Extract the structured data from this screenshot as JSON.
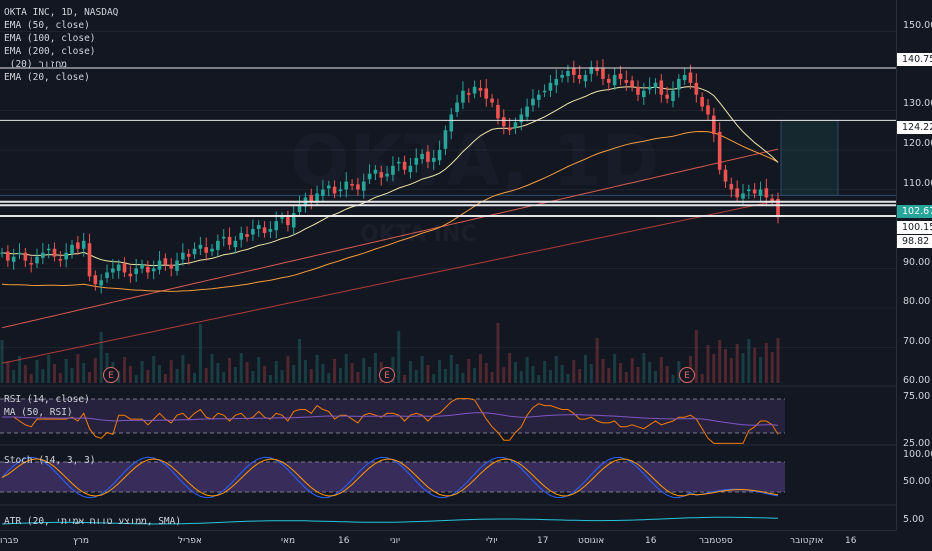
{
  "legend": {
    "symbol": "OKTA INC, 1D, NASDAQ",
    "ema50": "EMA (50, close)",
    "ema100": "EMA (100, close)",
    "ema200": "EMA (200, close)",
    "volume": " (20) מחזור",
    "ema20": "EMA (20, close)"
  },
  "rsi_legend": "RSI (14, close)",
  "rsi_ma_legend": "MA (50, RSI)",
  "stoch_legend": "Stoch (14, 3, 3)",
  "atr_legend": "ATR (20, ממוצע טווח אמיתי, SMA)",
  "watermark": {
    "line1": "OKTA, 1D",
    "line2": "OKTA INC"
  },
  "price_scale": {
    "ticks": [
      "150.00",
      "130.00",
      "120.00",
      "110.00",
      "90.00",
      "80.00",
      "70.00",
      "60.00"
    ],
    "level_badges": [
      "140.75",
      "124.22",
      "100.15",
      "98.82"
    ],
    "current_price": "102.67"
  },
  "rsi_scale": [
    "75.00",
    "25.00"
  ],
  "stoch_scale": [
    "100.00",
    "50.00"
  ],
  "atr_scale": [
    "5.00"
  ],
  "time_axis": [
    "פברו",
    "מרץ",
    "אפריל",
    "מאי",
    "16",
    "יוני",
    "יולי",
    "17",
    "אוגוסט",
    "16",
    "ספטמבר",
    "אוקטובר",
    "16"
  ],
  "earnings_marker": "E",
  "colors": {
    "up": "#26a69a",
    "down": "#ef5350",
    "ema20": "#f0e6a8",
    "ema50": "#f59b3b",
    "ema100": "#d9584f",
    "ema200": "#b23a36",
    "rsi": "#f57c00",
    "stoch_k": "#2962ff",
    "stoch_d": "#ff9800",
    "atr": "#26c6da"
  },
  "chart_data": {
    "type": "candlestick",
    "title": "OKTA INC, 1D, NASDAQ",
    "ylim": [
      58,
      158
    ],
    "horizontal_levels": [
      140.75,
      127.5,
      108.5,
      106.9,
      106.0,
      103.3
    ],
    "close_approx": [
      94,
      92,
      93,
      94,
      92,
      91,
      93,
      94,
      95,
      93,
      92,
      94,
      96,
      95,
      97,
      88,
      86,
      87,
      89,
      90,
      91,
      89,
      88,
      90,
      91,
      89,
      90,
      92,
      91,
      90,
      92,
      94,
      93,
      95,
      96,
      94,
      95,
      97,
      98,
      96,
      97,
      99,
      98,
      100,
      101,
      99,
      100,
      102,
      103,
      101,
      104,
      106,
      108,
      107,
      109,
      110,
      111,
      109,
      110,
      112,
      111,
      110,
      112,
      114,
      115,
      113,
      114,
      116,
      117,
      115,
      116,
      118,
      119,
      117,
      118,
      120,
      125,
      129,
      132,
      135,
      134,
      136,
      135,
      133,
      132,
      128,
      126,
      125,
      127,
      129,
      131,
      133,
      134,
      135,
      137,
      138,
      139,
      140,
      139,
      138,
      139,
      141,
      140,
      138,
      137,
      139,
      138,
      137,
      136,
      134,
      135,
      136,
      137,
      134,
      133,
      135,
      138,
      139,
      137,
      134,
      131,
      129,
      124,
      115,
      112,
      110,
      108,
      109,
      110,
      109,
      110,
      108,
      107,
      103
    ],
    "rsi_range": [
      20,
      80
    ],
    "stoch_range": [
      0,
      100
    ]
  }
}
